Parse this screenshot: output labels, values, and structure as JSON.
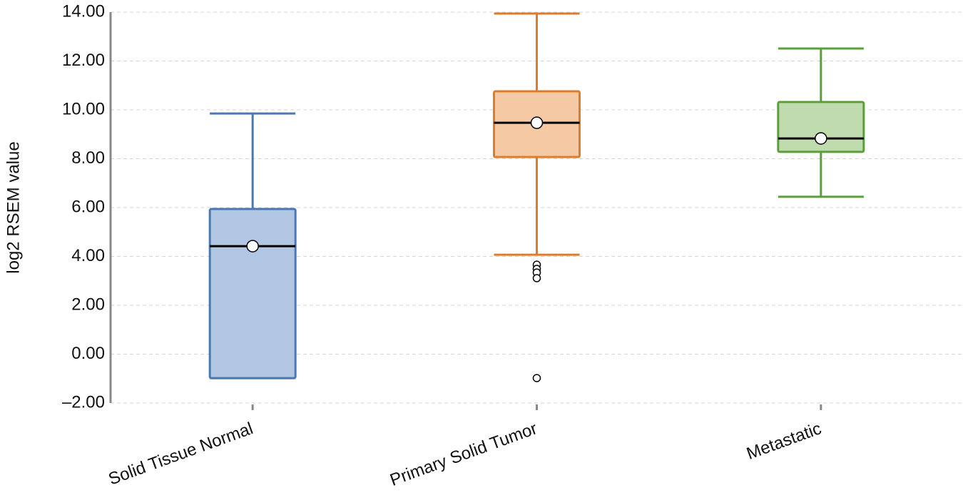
{
  "chart_data": {
    "type": "box",
    "y_label": "log2 RSEM value",
    "categories": [
      "Solid Tissue Normal",
      "Primary Solid Tumor",
      "Metastatic"
    ],
    "boxes": [
      {
        "min": -0.98,
        "q1": -0.98,
        "median": 4.42,
        "q3": 5.94,
        "max": 9.85,
        "mean": 4.42,
        "outliers": [],
        "color": "#4a78b5",
        "fill": "#b0c6e3"
      },
      {
        "min": 4.07,
        "q1": 8.07,
        "median": 9.47,
        "q3": 10.76,
        "max": 13.94,
        "mean": 9.47,
        "outliers": [
          3.66,
          3.49,
          3.34,
          3.11,
          -0.98
        ],
        "color": "#e07b27",
        "fill": "#f5c9a4"
      },
      {
        "min": 6.44,
        "q1": 8.28,
        "median": 8.83,
        "q3": 10.32,
        "max": 12.51,
        "mean": 8.83,
        "outliers": [],
        "color": "#5b9f3a",
        "fill": "#c0dcae"
      }
    ],
    "ylim": [
      -2,
      14
    ],
    "yticks": [
      {
        "value": -2,
        "label": "–2.00"
      },
      {
        "value": 0,
        "label": "0.00"
      },
      {
        "value": 2,
        "label": "2.00"
      },
      {
        "value": 4,
        "label": "4.00"
      },
      {
        "value": 6,
        "label": "6.00"
      },
      {
        "value": 8,
        "label": "8.00"
      },
      {
        "value": 10,
        "label": "10.00"
      },
      {
        "value": 12,
        "label": "12.00"
      },
      {
        "value": 14,
        "label": "14.00"
      }
    ],
    "grid": true
  }
}
